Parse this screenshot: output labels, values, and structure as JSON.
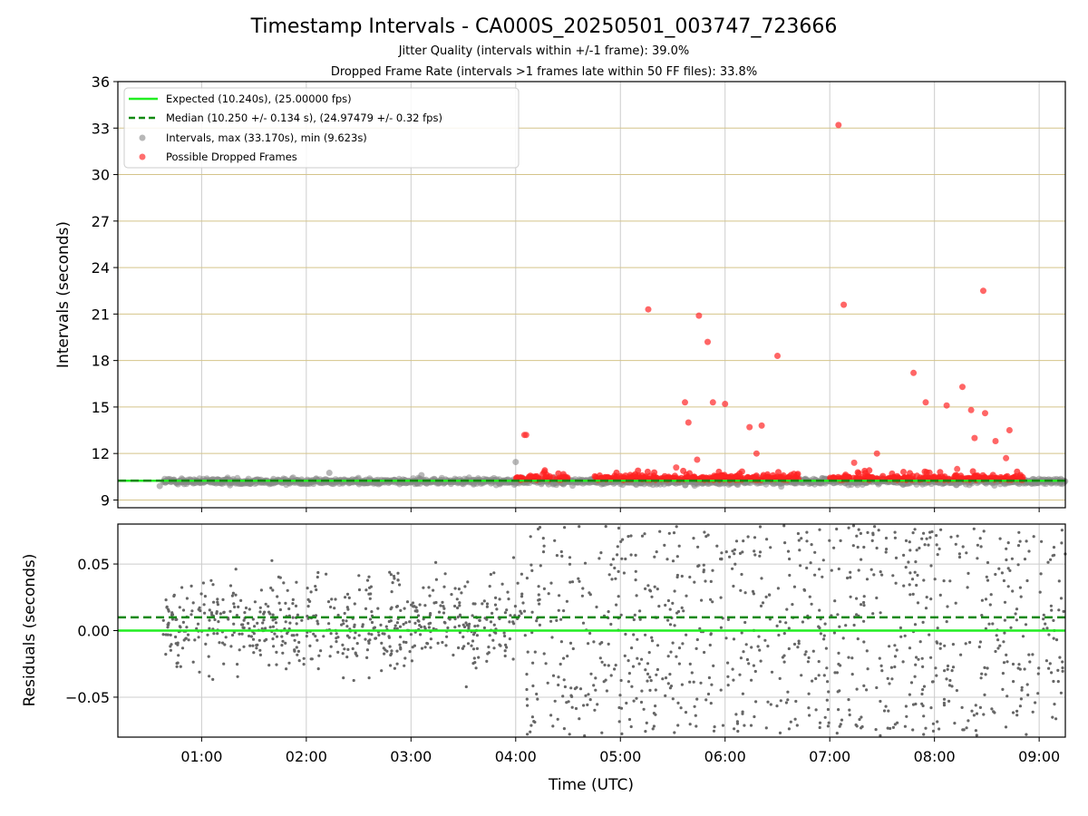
{
  "chart_data": [
    {
      "type": "scatter",
      "panel": "top",
      "title": "Timestamp Intervals - CA000S_20250501_003747_723666",
      "subtitle_lines": [
        "Jitter Quality (intervals within +/-1 frame): 39.0%",
        "Dropped Frame Rate (intervals >1 frames late within 50 FF files): 33.8%"
      ],
      "xlabel": "",
      "ylabel": "Intervals (seconds)",
      "xlim_hours": [
        0.2,
        9.25
      ],
      "ylim": [
        8.5,
        36
      ],
      "yticks": [
        9,
        12,
        15,
        18,
        21,
        24,
        27,
        30,
        33,
        36
      ],
      "ytick_labels": [
        "9",
        "12",
        "15",
        "18",
        "21",
        "24",
        "27",
        "30",
        "33",
        "36"
      ],
      "grid": true,
      "legend_position": "upper-left",
      "expected_value": 10.24,
      "median_value": 10.25,
      "legend": [
        {
          "label": "Expected (10.240s), (25.00000 fps)",
          "color": "#22ee22",
          "style": "solid"
        },
        {
          "label": "Median (10.250 +/- 0.134 s), (24.97479 +/- 0.32 fps)",
          "color": "#118811",
          "style": "dashed"
        },
        {
          "label": "Intervals, max (33.170s), min (9.623s)",
          "color": "#999999",
          "style": "dot"
        },
        {
          "label": "Possible Dropped Frames",
          "color": "#ff5555",
          "style": "dot"
        }
      ],
      "intervals_band": {
        "x_start": "00:38",
        "x_end": "09:15",
        "center": 10.2,
        "spread": 0.35
      },
      "dropped_frames_band_ranges": [
        [
          4.0,
          4.5
        ],
        [
          4.75,
          4.97
        ],
        [
          5.0,
          6.7
        ],
        [
          7.0,
          7.85
        ],
        [
          7.85,
          8.85
        ]
      ],
      "dropped_outliers": [
        {
          "x": "04:05",
          "y": 13.2
        },
        {
          "x": "04:06",
          "y": 13.2
        },
        {
          "x": "05:16",
          "y": 21.3
        },
        {
          "x": "05:32",
          "y": 11.1
        },
        {
          "x": "05:37",
          "y": 15.3
        },
        {
          "x": "05:39",
          "y": 14.0
        },
        {
          "x": "05:44",
          "y": 11.6
        },
        {
          "x": "05:45",
          "y": 20.9
        },
        {
          "x": "05:50",
          "y": 19.2
        },
        {
          "x": "05:53",
          "y": 15.3
        },
        {
          "x": "06:00",
          "y": 15.2
        },
        {
          "x": "06:14",
          "y": 13.7
        },
        {
          "x": "06:18",
          "y": 12.0
        },
        {
          "x": "06:21",
          "y": 13.8
        },
        {
          "x": "06:30",
          "y": 18.3
        },
        {
          "x": "07:05",
          "y": 33.2
        },
        {
          "x": "07:08",
          "y": 21.6
        },
        {
          "x": "07:14",
          "y": 11.4
        },
        {
          "x": "07:27",
          "y": 12.0
        },
        {
          "x": "07:48",
          "y": 17.2
        },
        {
          "x": "07:55",
          "y": 15.3
        },
        {
          "x": "08:07",
          "y": 15.1
        },
        {
          "x": "08:13",
          "y": 11.0
        },
        {
          "x": "08:16",
          "y": 16.3
        },
        {
          "x": "08:21",
          "y": 14.8
        },
        {
          "x": "08:23",
          "y": 13.0
        },
        {
          "x": "08:28",
          "y": 22.5
        },
        {
          "x": "08:29",
          "y": 14.6
        },
        {
          "x": "08:35",
          "y": 12.8
        },
        {
          "x": "08:41",
          "y": 11.7
        },
        {
          "x": "08:43",
          "y": 13.5
        }
      ]
    },
    {
      "type": "scatter",
      "panel": "bottom",
      "xlabel": "Time (UTC)",
      "ylabel": "Residuals (seconds)",
      "xlim_hours": [
        0.2,
        9.25
      ],
      "ylim": [
        -0.08,
        0.08
      ],
      "yticks": [
        -0.05,
        0.0,
        0.05
      ],
      "ytick_labels": [
        "−0.05",
        "0.00",
        "0.05"
      ],
      "xticks_hours": [
        1,
        2,
        3,
        4,
        5,
        6,
        7,
        8,
        9
      ],
      "xtick_labels": [
        "01:00",
        "02:00",
        "03:00",
        "04:00",
        "05:00",
        "06:00",
        "07:00",
        "08:00",
        "09:00"
      ],
      "grid": true,
      "expected_line": 0.0,
      "median_line": 0.01,
      "residuals_spread": {
        "x_start": "00:38",
        "x_end": "09:15",
        "min": -0.08,
        "max": 0.08
      }
    }
  ],
  "colors": {
    "expected": "#22ee22",
    "median": "#118811",
    "interval_points": "#888888",
    "dropped_points": "#ff2222",
    "residual_points": "#666666",
    "hgrid_top": "#d4c48a",
    "grid": "#cccccc"
  }
}
